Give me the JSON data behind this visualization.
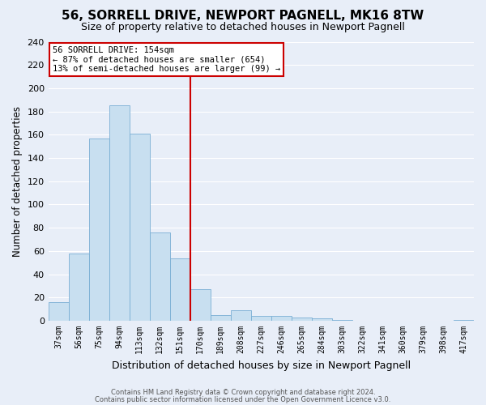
{
  "title": "56, SORRELL DRIVE, NEWPORT PAGNELL, MK16 8TW",
  "subtitle": "Size of property relative to detached houses in Newport Pagnell",
  "xlabel": "Distribution of detached houses by size in Newport Pagnell",
  "ylabel": "Number of detached properties",
  "bar_labels": [
    "37sqm",
    "56sqm",
    "75sqm",
    "94sqm",
    "113sqm",
    "132sqm",
    "151sqm",
    "170sqm",
    "189sqm",
    "208sqm",
    "227sqm",
    "246sqm",
    "265sqm",
    "284sqm",
    "303sqm",
    "322sqm",
    "341sqm",
    "360sqm",
    "379sqm",
    "398sqm",
    "417sqm"
  ],
  "bar_values": [
    16,
    58,
    157,
    185,
    161,
    76,
    54,
    27,
    5,
    9,
    4,
    4,
    3,
    2,
    1,
    0,
    0,
    0,
    0,
    0,
    1
  ],
  "bar_color": "#c8dff0",
  "bar_edge_color": "#7aafd4",
  "vline_x": 6.5,
  "vline_color": "#cc0000",
  "ylim": [
    0,
    240
  ],
  "yticks": [
    0,
    20,
    40,
    60,
    80,
    100,
    120,
    140,
    160,
    180,
    200,
    220,
    240
  ],
  "annotation_title": "56 SORRELL DRIVE: 154sqm",
  "annotation_line1": "← 87% of detached houses are smaller (654)",
  "annotation_line2": "13% of semi-detached houses are larger (99) →",
  "annotation_box_color": "#ffffff",
  "annotation_box_edge": "#cc0000",
  "footer_line1": "Contains HM Land Registry data © Crown copyright and database right 2024.",
  "footer_line2": "Contains public sector information licensed under the Open Government Licence v3.0.",
  "background_color": "#e8eef8",
  "grid_color": "#ffffff",
  "title_fontsize": 11,
  "subtitle_fontsize": 9
}
